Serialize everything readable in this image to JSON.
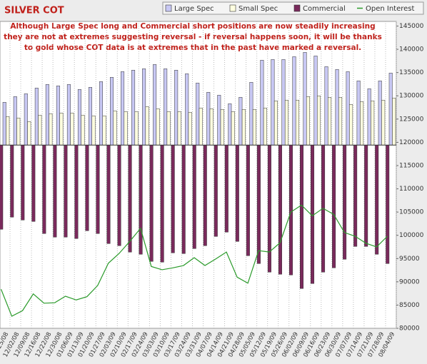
{
  "chart_data": {
    "type": "bar",
    "title": "SILVER COT",
    "annotation": [
      "Although Large Spec long and Commercial short positions are now steadily increasing",
      "they are not at extremes suggesting reversal - if reversal happens soon, it will be thanks",
      "to gold whose COT data is at extremes that in the past have marked a reversal."
    ],
    "categories": [
      "11/25/08",
      "12/02/08",
      "12/09/08",
      "12/16/08",
      "12/22/08",
      "12/30/08",
      "01/06/09",
      "01/13/09",
      "01/20/09",
      "01/27/09",
      "02/03/09",
      "02/10/09",
      "02/17/09",
      "02/24/09",
      "03/03/09",
      "03/10/09",
      "03/17/09",
      "03/24/09",
      "03/31/09",
      "04/07/09",
      "04/14/09",
      "04/21/09",
      "04/28/09",
      "05/05/09",
      "05/12/09",
      "05/19/09",
      "05/26/09",
      "06/02/09",
      "06/09/09",
      "06/16/09",
      "06/23/09",
      "06/30/09",
      "07/07/09",
      "07/14/09",
      "07/21/09",
      "07/28/09",
      "08/04/09"
    ],
    "ylim": [
      -40000,
      27000
    ],
    "y2lim": [
      80000,
      146000
    ],
    "y2ticks": [
      80000,
      85000,
      90000,
      95000,
      100000,
      105000,
      110000,
      115000,
      120000,
      125000,
      130000,
      135000,
      140000,
      145000
    ],
    "grid": true,
    "legend": "top",
    "series": [
      {
        "name": "Large Spec",
        "color": "#c8c8f4",
        "values": [
          9350,
          10590,
          11210,
          12460,
          13240,
          12930,
          13240,
          12150,
          12620,
          13860,
          14800,
          16040,
          16360,
          16670,
          17600,
          16670,
          16360,
          15580,
          13550,
          11530,
          10900,
          9030,
          10440,
          13710,
          18540,
          18690,
          18690,
          19310,
          20250,
          19470,
          17130,
          16510,
          16040,
          14020,
          12310,
          14020,
          15730
        ]
      },
      {
        "name": "Small Spec",
        "color": "#ffffe0",
        "values": [
          6230,
          5920,
          5140,
          6540,
          6850,
          7010,
          7010,
          6540,
          6390,
          6390,
          7480,
          7320,
          7320,
          8410,
          7940,
          7320,
          7320,
          7170,
          8100,
          7940,
          7790,
          7320,
          7790,
          7790,
          8100,
          9660,
          9810,
          9810,
          10590,
          10750,
          10440,
          10440,
          8880,
          9500,
          9660,
          9810,
          10280
        ]
      },
      {
        "name": "Commercial",
        "color": "#7a2a5c",
        "values": [
          -18380,
          -15730,
          -16360,
          -16670,
          -19310,
          -20090,
          -20090,
          -20400,
          -18690,
          -19310,
          -21500,
          -21960,
          -23360,
          -23830,
          -25390,
          -25550,
          -23520,
          -23680,
          -22590,
          -21960,
          -19940,
          -19000,
          -21030,
          -24140,
          -25860,
          -27730,
          -28190,
          -28350,
          -31310,
          -30220,
          -27730,
          -26790,
          -24920,
          -22120,
          -22120,
          -23830,
          -25860
        ]
      },
      {
        "name": "Open Interest",
        "color": "#2a9a2a",
        "axis": "y2",
        "type": "line",
        "values": [
          88400,
          82600,
          83800,
          87400,
          85400,
          85500,
          86900,
          86100,
          86800,
          89200,
          94000,
          96100,
          98700,
          101500,
          93300,
          92600,
          93000,
          93500,
          95200,
          93500,
          94900,
          96400,
          91000,
          89700,
          96700,
          96400,
          98400,
          105000,
          106500,
          104200,
          105800,
          104500,
          100600,
          99800,
          98300,
          97500,
          99800
        ]
      }
    ]
  }
}
